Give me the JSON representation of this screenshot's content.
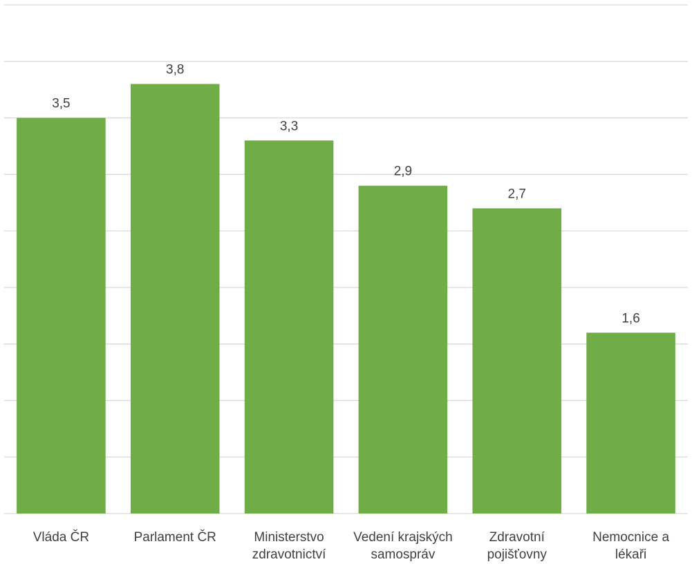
{
  "chart_data": {
    "type": "bar",
    "categories": [
      [
        "Vláda ČR"
      ],
      [
        "Parlament ČR"
      ],
      [
        "Ministerstvo",
        "zdravotnictví"
      ],
      [
        "Vedení krajských",
        "samospráv"
      ],
      [
        "Zdravotní",
        "pojišťovny"
      ],
      [
        "Nemocnice a",
        "lékaři"
      ]
    ],
    "values": [
      3.5,
      3.8,
      3.3,
      2.9,
      2.7,
      1.6
    ],
    "value_labels": [
      "3,5",
      "3,8",
      "3,3",
      "2,9",
      "2,7",
      "1,6"
    ],
    "title": "",
    "xlabel": "",
    "ylabel": "",
    "ylim": [
      0,
      4.5
    ],
    "ytick_step": 0.5,
    "y_tick_labels_shown": false,
    "grid": true,
    "legend": "none",
    "colors": {
      "bar": "#70ad47",
      "grid": "#d9d9d9",
      "text": "#404040"
    }
  }
}
